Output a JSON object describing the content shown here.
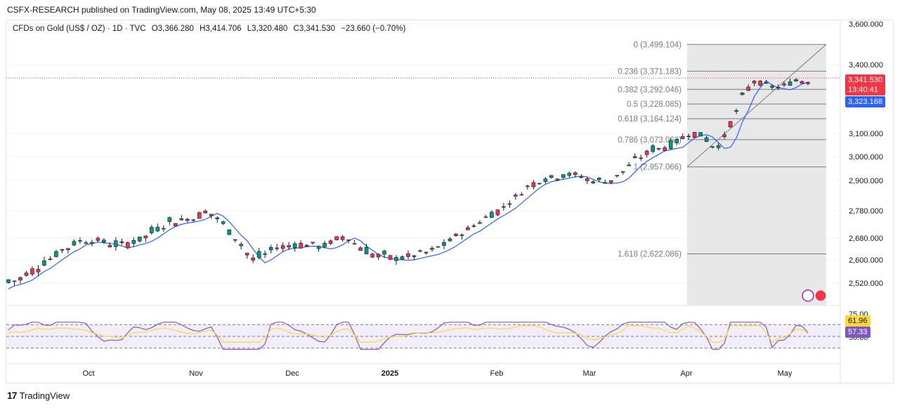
{
  "header": {
    "publisher": "CSFX-RESEARCH published on TradingView.com, May 08, 2025 13:49 UTC+5:30"
  },
  "legend": {
    "symbol": "CFDs on Gold (US$ / OZ) · 1D · TVC",
    "open": "O3,366.280",
    "high": "H3,414.706",
    "low": "L3,320.480",
    "close": "C3,341.530",
    "change": "−23.660 (−0.70%)"
  },
  "price_axis": {
    "ticks": [
      "3,600.000",
      "3,400.000",
      "3,100.000",
      "3,000.000",
      "2,900.000",
      "2,780.000",
      "2,680.000",
      "2,600.000",
      "2,520.000"
    ],
    "tick_values": [
      3600,
      3400,
      3100,
      3000,
      2900,
      2780,
      2680,
      2600,
      2520
    ],
    "last_price_label": "3,341.530",
    "countdown_label": "13:40:41",
    "ma_label": "3,323.168"
  },
  "rsi_axis": {
    "ticks": [
      "75.00",
      "50.00"
    ],
    "rsi_value": "61.96",
    "rsi_ma_value": "57.33"
  },
  "time_axis": {
    "labels": [
      "Oct",
      "Nov",
      "Dec",
      "2025",
      "Feb",
      "Mar",
      "Apr",
      "May"
    ]
  },
  "fib_levels": [
    {
      "label": "0 (3,499.104)",
      "value": 3499.104
    },
    {
      "label": "0.236 (3,371.183)",
      "value": 3371.183
    },
    {
      "label": "0.382 (3,292.046)",
      "value": 3292.046
    },
    {
      "label": "0.5 (3,228.085)",
      "value": 3228.085
    },
    {
      "label": "0.618 (3,164.124)",
      "value": 3164.124
    },
    {
      "label": "0.786 (3,073.062)",
      "value": 3073.062
    },
    {
      "label": "1 (2,957.066)",
      "value": 2957.066
    },
    {
      "label": "1.618 (2,622.086)",
      "value": 2622.086
    }
  ],
  "footer": {
    "brand": "TradingView"
  },
  "colors": {
    "up": "#089981",
    "down": "#f23645",
    "ma": "#2962ff",
    "rsi": "#7e57c2",
    "rsi_ma": "#fdd835",
    "fib_box": "#e6e6e6"
  },
  "chart_data": {
    "type": "line",
    "title": "",
    "xlabel": "",
    "ylabel": "",
    "ylim": [
      2480,
      3620
    ],
    "series": [
      {
        "values": [
          2500,
          2510,
          2515,
          2522,
          2530,
          2545,
          2560,
          2570,
          2585,
          2600,
          2615,
          2630,
          2640,
          2655,
          2660,
          2665,
          2663,
          2660,
          2658,
          2650,
          2645,
          2648,
          2655,
          2660,
          2668,
          2680,
          2695,
          2710,
          2722,
          2730,
          2735,
          2738,
          2742,
          2748,
          2760,
          2770,
          2760,
          2740,
          2715,
          2690,
          2670,
          2640,
          2610,
          2590,
          2600,
          2615,
          2630,
          2640,
          2642,
          2645,
          2648,
          2650,
          2649,
          2645,
          2640,
          2645,
          2655,
          2670,
          2680,
          2670,
          2650,
          2635,
          2620,
          2610,
          2605,
          2602,
          2600,
          2598,
          2600,
          2605,
          2610,
          2615,
          2620,
          2628,
          2638,
          2650,
          2665,
          2680,
          2695,
          2705,
          2720,
          2735,
          2750,
          2762,
          2775,
          2790,
          2810,
          2830,
          2850,
          2870,
          2885,
          2895,
          2900,
          2905,
          2910,
          2915,
          2918,
          2915,
          2905,
          2895,
          2890,
          2888,
          2890,
          2895,
          2910,
          2935,
          2960,
          2980,
          2995,
          3010,
          3025,
          3030,
          3035,
          3040,
          3060,
          3080,
          3090,
          3095,
          3085,
          3060,
          3035,
          3040,
          3080,
          3150,
          3200,
          3260,
          3300,
          3330,
          3310,
          3300,
          3295,
          3290,
          3300,
          3315,
          3323
        ]
      }
    ],
    "candles_note": "daily OHLC Sep 2024 to May 08 2025",
    "last_close": 3341.53
  }
}
